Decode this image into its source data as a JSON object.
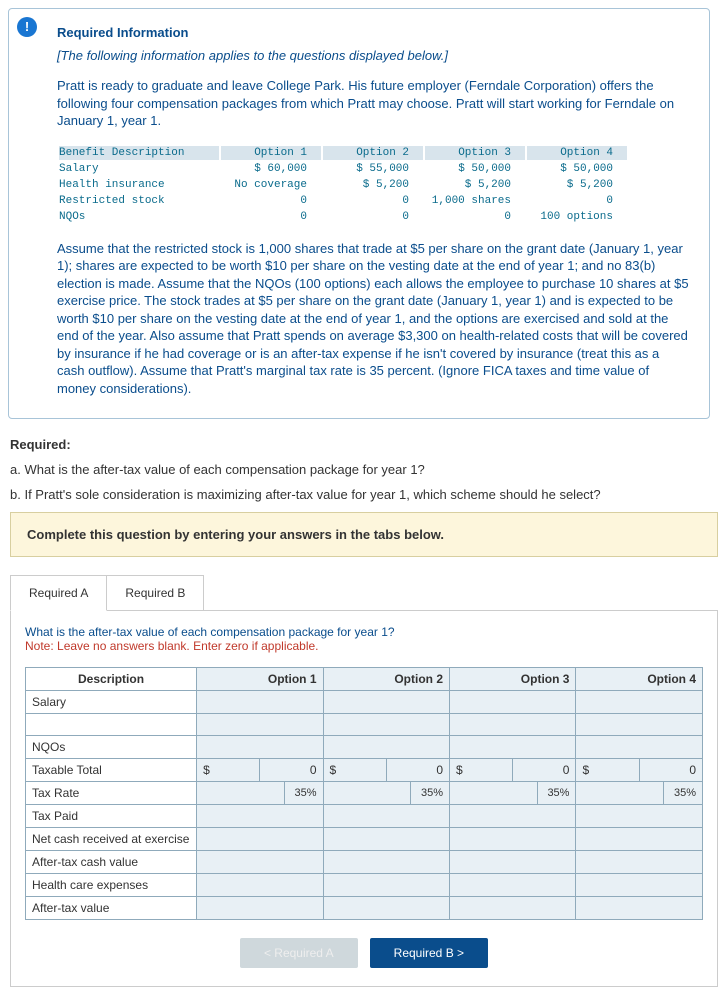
{
  "info": {
    "title": "Required Information",
    "subtitle": "[The following information applies to the questions displayed below.]",
    "para": "Pratt is ready to graduate and leave College Park. His future employer (Ferndale Corporation) offers the following four compensation packages from which Pratt may choose. Pratt will start working for Ferndale on January 1, year 1.",
    "assume": "Assume that the restricted stock is 1,000 shares that trade at $5 per share on the grant date (January 1, year 1); shares are expected to be worth $10 per share on the vesting date at the end of year 1; and no 83(b) election is made. Assume that the NQOs (100 options) each allows the employee to purchase 10 shares at $5 exercise price. The stock trades at $5 per share on the grant date (January 1, year 1) and is expected to be worth $10 per share on the vesting date at the end of year 1, and the options are exercised and sold at the end of the year. Also assume that Pratt spends on average $3,300 on health-related costs that will be covered by insurance if he had coverage or is an after-tax expense if he isn't covered by insurance (treat this as a cash outflow). Assume that Pratt's marginal tax rate is 35 percent. (Ignore FICA taxes and time value of money considerations)."
  },
  "benefit": {
    "headers": [
      "Benefit Description",
      "Option 1",
      "Option 2",
      "Option 3",
      "Option 4"
    ],
    "rows": [
      [
        "Salary",
        "$ 60,000",
        "$ 55,000",
        "$ 50,000",
        "$ 50,000"
      ],
      [
        "Health insurance",
        "No coverage",
        "$ 5,200",
        "$ 5,200",
        "$ 5,200"
      ],
      [
        "Restricted stock",
        "0",
        "0",
        "1,000 shares",
        "0"
      ],
      [
        "NQOs",
        "0",
        "0",
        "0",
        "100 options"
      ]
    ]
  },
  "required": {
    "hdr": "Required:",
    "a": "a. What is the after-tax value of each compensation package for year 1?",
    "b": "b. If Pratt's sole consideration is maximizing after-tax value for year 1, which scheme should he select?"
  },
  "complete": "Complete this question by entering your answers in the tabs below.",
  "tabs": {
    "a": "Required A",
    "b": "Required B"
  },
  "pane": {
    "what": "What is the after-tax value of each compensation package for year 1?",
    "note": "Note: Leave no answers blank. Enter zero if applicable."
  },
  "answer": {
    "headers": [
      "Description",
      "Option 1",
      "Option 2",
      "Option 3",
      "Option 4"
    ],
    "row_labels": [
      "Salary",
      "",
      "NQOs",
      "Taxable Total",
      "Tax Rate",
      "Tax Paid",
      "Net cash received at exercise",
      "After-tax cash value",
      "Health care expenses",
      "After-tax value"
    ],
    "taxable_total_prefix": "$",
    "taxable_total_val": "0",
    "tax_rate": "35%"
  },
  "nav": {
    "prev": "< Required A",
    "next": "Required B  >"
  },
  "colors": {
    "card_border": "#a8c4d8",
    "heading_text": "#0a4d8c",
    "mono_text": "#0a6b8c",
    "benefit_header_bg": "#d8e4ec",
    "complete_bg": "#fdf6dc",
    "complete_border": "#d8cfa0",
    "table_border": "#8faabb",
    "th_bg": "#dde8ef",
    "cell_bg": "#e8f0f5",
    "note_text": "#c0392b",
    "nav_active": "#0a4d8c",
    "nav_disabled": "#cfd8dc"
  }
}
